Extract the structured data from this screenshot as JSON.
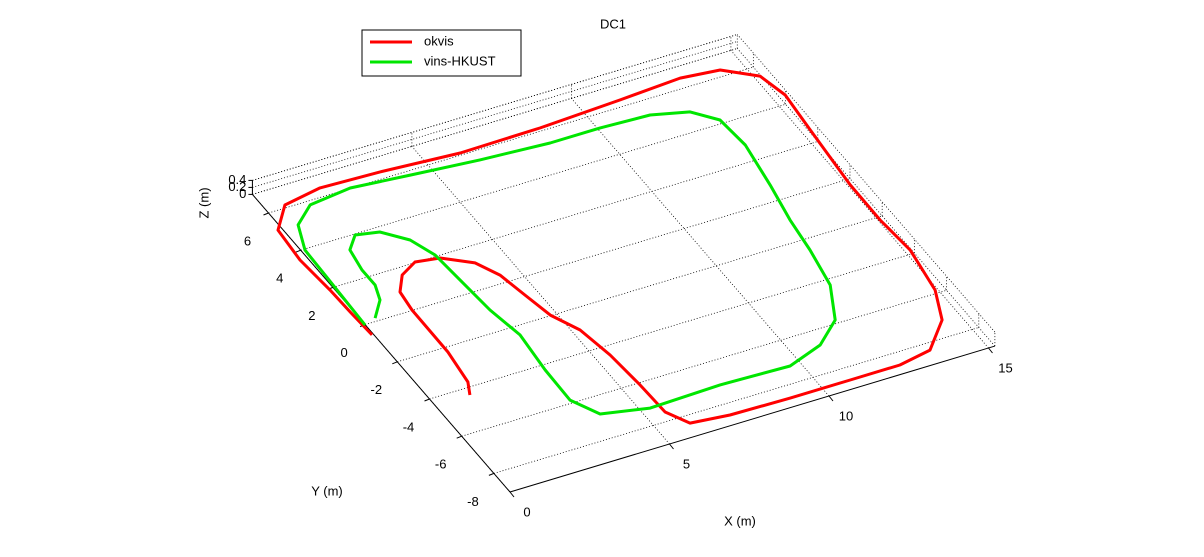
{
  "chart_data": {
    "type": "line3d",
    "title": "DC1",
    "x_label": "X (m)",
    "y_label": "Y (m)",
    "z_label": "Z (m)",
    "xlim": [
      0,
      15.2
    ],
    "ylim": [
      -9,
      7
    ],
    "zlim": [
      0,
      0.4
    ],
    "xticks": [
      0,
      5,
      10,
      15
    ],
    "yticks": [
      -8,
      -6,
      -4,
      -2,
      0,
      2,
      4,
      6
    ],
    "zticks": [
      0,
      0.2,
      0.4
    ],
    "grid": true,
    "legend": "top-left",
    "series": [
      {
        "name": "okvis",
        "color": "#ff0000",
        "x": [
          1.09,
          1.32,
          1.47,
          1.48,
          1.57,
          1.99,
          2.59,
          3.3,
          4.06,
          4.42,
          4.61,
          4.81,
          5.23,
          5.44,
          5.54,
          5.58,
          5.96,
          7.13,
          8.99,
          10.87,
          12.43,
          13.5,
          14.45,
          14.92,
          15.16,
          15.06,
          15.07,
          15.26,
          15.39,
          15.17,
          14.31,
          13.14,
          11.18,
          8.58,
          6.06,
          3.66,
          1.82,
          0.58,
          -0.13,
          -0.23,
          -0.13,
          -0.1,
          -0.05
        ],
        "y": [
          -4.35,
          -3.77,
          -2.23,
          0.02,
          0.94,
          1.64,
          2.03,
          1.88,
          1.22,
          0.38,
          -0.79,
          -1.97,
          -2.99,
          -4.44,
          -6.11,
          -7.58,
          -8.37,
          -8.54,
          -8.59,
          -8.59,
          -8.59,
          -8.34,
          -7.21,
          -5.84,
          -3.82,
          -2.15,
          -0.27,
          2.59,
          4.4,
          5.53,
          6.3,
          6.47,
          6.31,
          6.14,
          6.1,
          6.32,
          6.41,
          6.13,
          5.15,
          3.59,
          1.93,
          0.73,
          -0.53
        ]
      },
      {
        "name": "vins-HKUST",
        "color": "#00e600",
        "x": [
          0.39,
          0.9,
          1.1,
          1.1,
          1.23,
          1.68,
          2.36,
          2.94,
          3.24,
          3.32,
          3.42,
          3.63,
          3.5,
          3.47,
          3.92,
          5.29,
          7.53,
          9.68,
          10.88,
          11.79,
          12.42,
          12.67,
          12.82,
          13.08,
          13.32,
          13.23,
          12.66,
          11.6,
          10.08,
          8.51,
          6.4,
          4.34,
          2.57,
          1.21,
          0.48,
          0.11,
          0.07,
          0.03,
          -0.01
        ],
        "y": [
          0.15,
          0.86,
          1.56,
          2.37,
          3.38,
          3.95,
          3.76,
          3.03,
          2.07,
          0.68,
          -0.98,
          -2.43,
          -4.25,
          -5.85,
          -6.83,
          -7.22,
          -7.13,
          -7.22,
          -6.71,
          -5.84,
          -4.28,
          -2.53,
          -0.99,
          0.76,
          2.78,
          4.17,
          4.9,
          5.28,
          5.37,
          5.37,
          5.55,
          5.8,
          6.02,
          5.81,
          5.11,
          3.95,
          2.63,
          1.31,
          -0.02
        ]
      }
    ]
  }
}
